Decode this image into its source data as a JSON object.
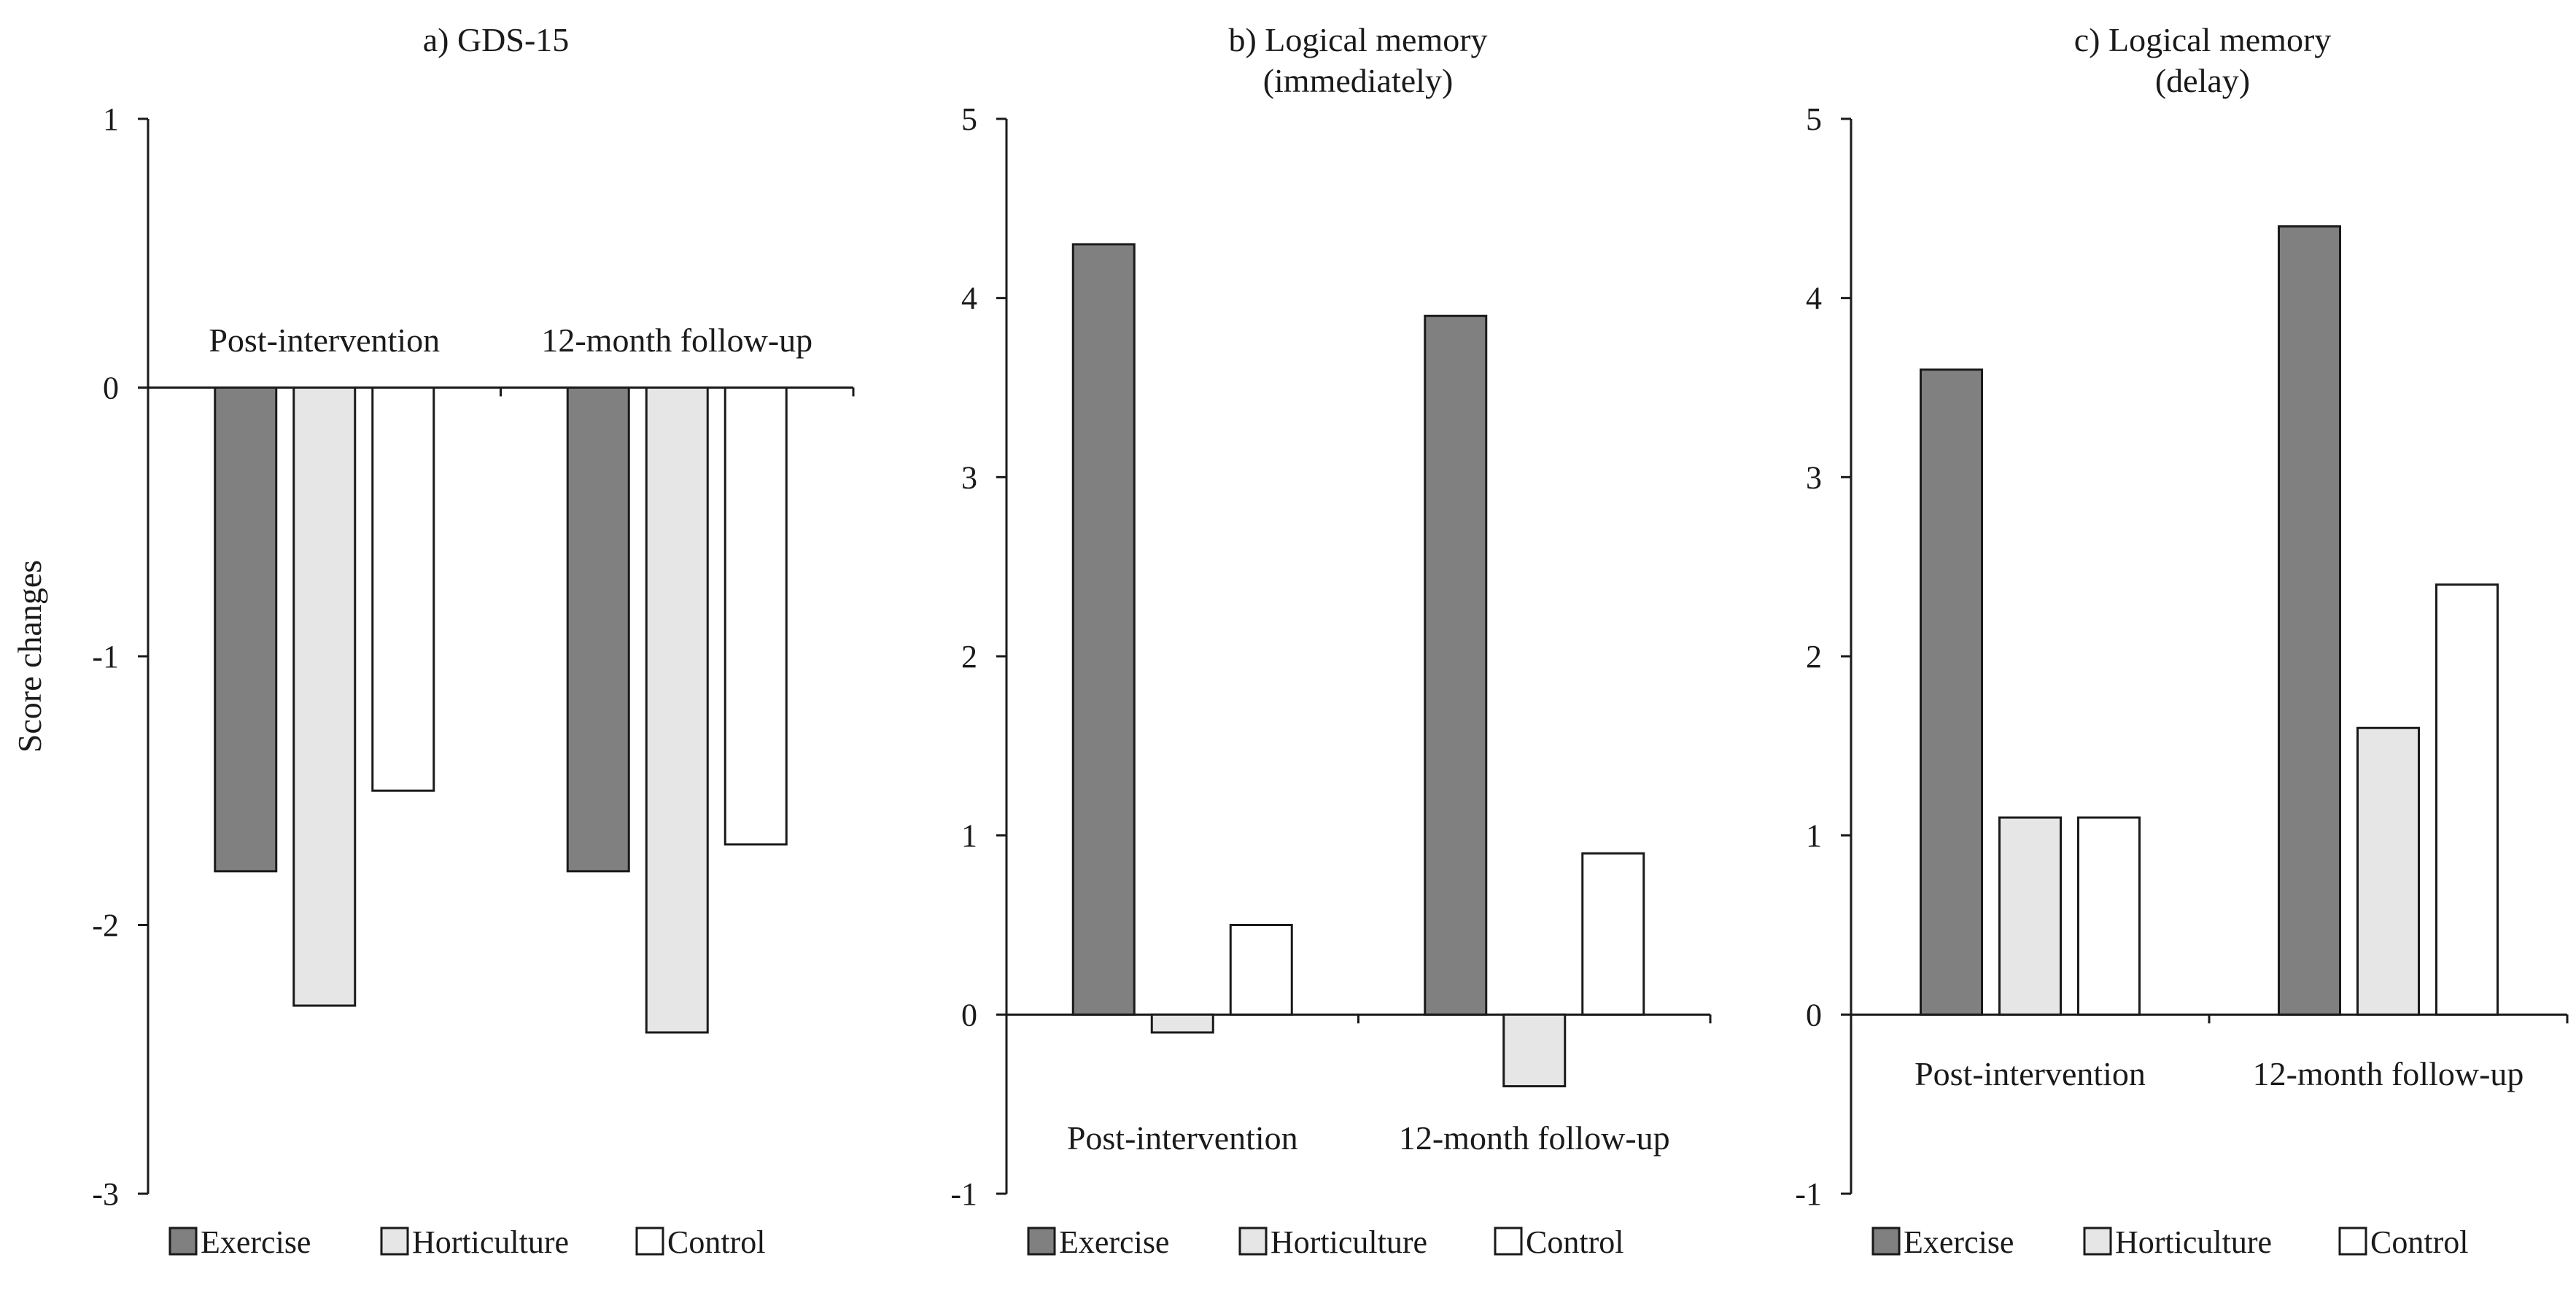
{
  "chart_data": [
    {
      "type": "bar",
      "title_lines": [
        "a) GDS-15"
      ],
      "ylabel": "Score changes",
      "ylim": [
        -3,
        1
      ],
      "yticks": [
        1,
        0,
        -1,
        -2,
        -3
      ],
      "ytick_labels": [
        "1",
        "0",
        "-1",
        "-2",
        "-3"
      ],
      "categories": [
        "Post-intervention",
        "12-month follow-up"
      ],
      "category_label_position": "above-zero-line",
      "series": [
        {
          "name": "Exercise",
          "values": [
            -1.8,
            -1.8
          ]
        },
        {
          "name": "Horticulture",
          "values": [
            -2.3,
            -2.4
          ]
        },
        {
          "name": "Control",
          "values": [
            -1.5,
            -1.7
          ]
        }
      ],
      "legend": [
        "Exercise",
        "Horticulture",
        "Control"
      ]
    },
    {
      "type": "bar",
      "title_lines": [
        "b) Logical memory",
        "(immediately)"
      ],
      "ylim": [
        -1,
        5
      ],
      "yticks": [
        5,
        4,
        3,
        2,
        1,
        0,
        -1
      ],
      "ytick_labels": [
        "5",
        "4",
        "3",
        "2",
        "1",
        "0",
        "-1"
      ],
      "categories": [
        "Post-intervention",
        "12-month follow-up"
      ],
      "category_label_position": "below-zero-line",
      "series": [
        {
          "name": "Exercise",
          "values": [
            4.3,
            3.9
          ]
        },
        {
          "name": "Horticulture",
          "values": [
            -0.1,
            -0.4
          ]
        },
        {
          "name": "Control",
          "values": [
            0.5,
            0.9
          ]
        }
      ],
      "legend": [
        "Exercise",
        "Horticulture",
        "Control"
      ]
    },
    {
      "type": "bar",
      "title_lines": [
        "c) Logical memory",
        "(delay)"
      ],
      "ylim": [
        -1,
        5
      ],
      "yticks": [
        5,
        4,
        3,
        2,
        1,
        0,
        -1
      ],
      "ytick_labels": [
        "5",
        "4",
        "3",
        "2",
        "1",
        "0",
        "-1"
      ],
      "categories": [
        "Post-intervention",
        "12-month follow-up"
      ],
      "category_label_position": "below-zero-line",
      "series": [
        {
          "name": "Exercise",
          "values": [
            3.6,
            4.4
          ]
        },
        {
          "name": "Horticulture",
          "values": [
            1.1,
            1.6
          ]
        },
        {
          "name": "Control",
          "values": [
            1.1,
            2.4
          ]
        }
      ],
      "legend": [
        "Exercise",
        "Horticulture",
        "Control"
      ]
    }
  ],
  "colors": {
    "Exercise": "#808080",
    "Horticulture": "#e6e6e6",
    "Control": "#ffffff",
    "axis": "#1a1a1a",
    "bar_stroke": "#1a1a1a"
  }
}
